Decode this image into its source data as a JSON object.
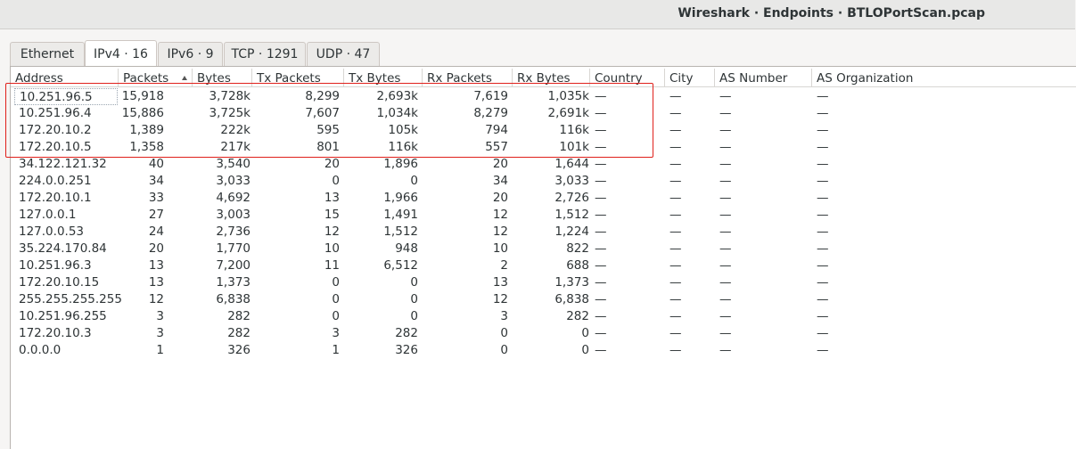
{
  "window": {
    "title": "Wireshark · Endpoints · BTLOPortScan.pcap"
  },
  "tabs": [
    {
      "label": "Ethernet",
      "active": false
    },
    {
      "label": "IPv4 · 16",
      "active": true
    },
    {
      "label": "IPv6 · 9",
      "active": false
    },
    {
      "label": "TCP · 1291",
      "active": false
    },
    {
      "label": "UDP · 47",
      "active": false
    }
  ],
  "table": {
    "sort_column": "Packets",
    "sort_direction": "descending",
    "columns": [
      "Address",
      "Packets",
      "Bytes",
      "Tx Packets",
      "Tx Bytes",
      "Rx Packets",
      "Rx Bytes",
      "Country",
      "City",
      "AS Number",
      "AS Organization"
    ],
    "rows": [
      [
        "10.251.96.5",
        "15,918",
        "3,728k",
        "8,299",
        "2,693k",
        "7,619",
        "1,035k",
        "—",
        "—",
        "—",
        "—"
      ],
      [
        "10.251.96.4",
        "15,886",
        "3,725k",
        "7,607",
        "1,034k",
        "8,279",
        "2,691k",
        "—",
        "—",
        "—",
        "—"
      ],
      [
        "172.20.10.2",
        "1,389",
        "222k",
        "595",
        "105k",
        "794",
        "116k",
        "—",
        "—",
        "—",
        "—"
      ],
      [
        "172.20.10.5",
        "1,358",
        "217k",
        "801",
        "116k",
        "557",
        "101k",
        "—",
        "—",
        "—",
        "—"
      ],
      [
        "34.122.121.32",
        "40",
        "3,540",
        "20",
        "1,896",
        "20",
        "1,644",
        "—",
        "—",
        "—",
        "—"
      ],
      [
        "224.0.0.251",
        "34",
        "3,033",
        "0",
        "0",
        "34",
        "3,033",
        "—",
        "—",
        "—",
        "—"
      ],
      [
        "172.20.10.1",
        "33",
        "4,692",
        "13",
        "1,966",
        "20",
        "2,726",
        "—",
        "—",
        "—",
        "—"
      ],
      [
        "127.0.0.1",
        "27",
        "3,003",
        "15",
        "1,491",
        "12",
        "1,512",
        "—",
        "—",
        "—",
        "—"
      ],
      [
        "127.0.0.53",
        "24",
        "2,736",
        "12",
        "1,512",
        "12",
        "1,224",
        "—",
        "—",
        "—",
        "—"
      ],
      [
        "35.224.170.84",
        "20",
        "1,770",
        "10",
        "948",
        "10",
        "822",
        "—",
        "—",
        "—",
        "—"
      ],
      [
        "10.251.96.3",
        "13",
        "7,200",
        "11",
        "6,512",
        "2",
        "688",
        "—",
        "—",
        "—",
        "—"
      ],
      [
        "172.20.10.15",
        "13",
        "1,373",
        "0",
        "0",
        "13",
        "1,373",
        "—",
        "—",
        "—",
        "—"
      ],
      [
        "255.255.255.255",
        "12",
        "6,838",
        "0",
        "0",
        "12",
        "6,838",
        "—",
        "—",
        "—",
        "—"
      ],
      [
        "10.251.96.255",
        "3",
        "282",
        "0",
        "0",
        "3",
        "282",
        "—",
        "—",
        "—",
        "—"
      ],
      [
        "172.20.10.3",
        "3",
        "282",
        "3",
        "282",
        "0",
        "0",
        "—",
        "—",
        "—",
        "—"
      ],
      [
        "0.0.0.0",
        "1",
        "326",
        "1",
        "326",
        "0",
        "0",
        "—",
        "—",
        "—",
        "—"
      ]
    ]
  },
  "colors": {
    "highlight_box": "#e0201b",
    "active_tab": "#ffffff"
  }
}
